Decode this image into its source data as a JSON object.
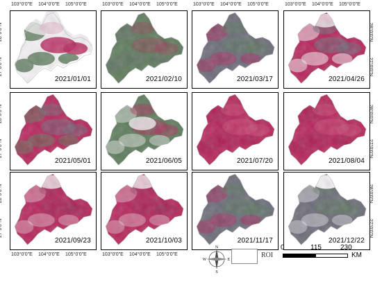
{
  "panels": [
    {
      "date": "2021/01/01",
      "style": "snow"
    },
    {
      "date": "2021/02/10",
      "style": "green"
    },
    {
      "date": "2021/03/17",
      "style": "mixed"
    },
    {
      "date": "2021/04/26",
      "style": "cloud"
    },
    {
      "date": "2021/05/01",
      "style": "mixedgreen"
    },
    {
      "date": "2021/06/05",
      "style": "hazy"
    },
    {
      "date": "2021/07/20",
      "style": "red"
    },
    {
      "date": "2021/08/04",
      "style": "red"
    },
    {
      "date": "2021/09/23",
      "style": "redtop"
    },
    {
      "date": "2021/10/03",
      "style": "redtop"
    },
    {
      "date": "2021/11/17",
      "style": "mixed"
    },
    {
      "date": "2021/12/22",
      "style": "darktop"
    }
  ],
  "axes": {
    "lon_labels": [
      "103°0'0\"E",
      "104°0'0\"E",
      "105°0'0\"E"
    ],
    "lat_labels": [
      "28°0'0\"N",
      "27°0'0\"N"
    ]
  },
  "legend": {
    "compass": {
      "n": "N",
      "s": "S",
      "e": "E",
      "w": "W"
    },
    "roi_label": "ROI"
  },
  "scale_bar": {
    "labels": [
      "0",
      "115",
      "230"
    ],
    "unit": "KM"
  },
  "colors": {
    "red": "#b5245a",
    "green": "#5c7a5a",
    "gray": "#6b6b78",
    "white": "#f4f1f4"
  }
}
